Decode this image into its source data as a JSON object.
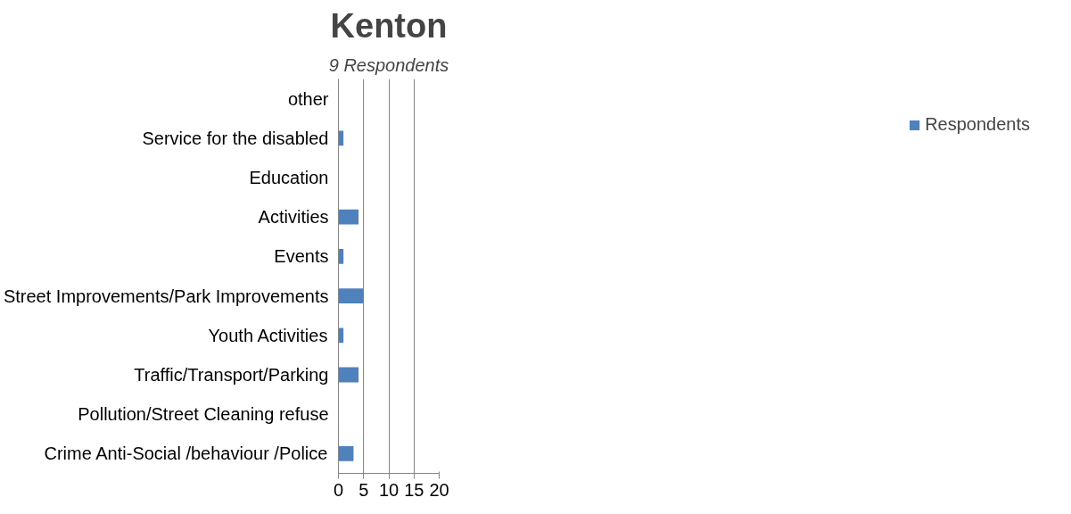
{
  "chart_data": {
    "type": "bar",
    "orientation": "horizontal",
    "title": "Kenton",
    "subtitle": "9 Respondents",
    "categories": [
      "other",
      "Service for the disabled",
      "Education",
      "Activities",
      "Events",
      "Street Improvements/Park Improvements",
      "Youth Activities",
      "Traffic/Transport/Parking",
      "Pollution/Street Cleaning refuse",
      "Crime Anti-Social /behaviour /Police"
    ],
    "series": [
      {
        "name": "Respondents",
        "color": "#4f81bd",
        "values": [
          0,
          1,
          0,
          4,
          1,
          5,
          1,
          4,
          0,
          3
        ]
      }
    ],
    "xlim": [
      0,
      20
    ],
    "xticks": [
      0,
      5,
      10,
      15,
      20
    ],
    "grid": "x",
    "legend": "right"
  }
}
